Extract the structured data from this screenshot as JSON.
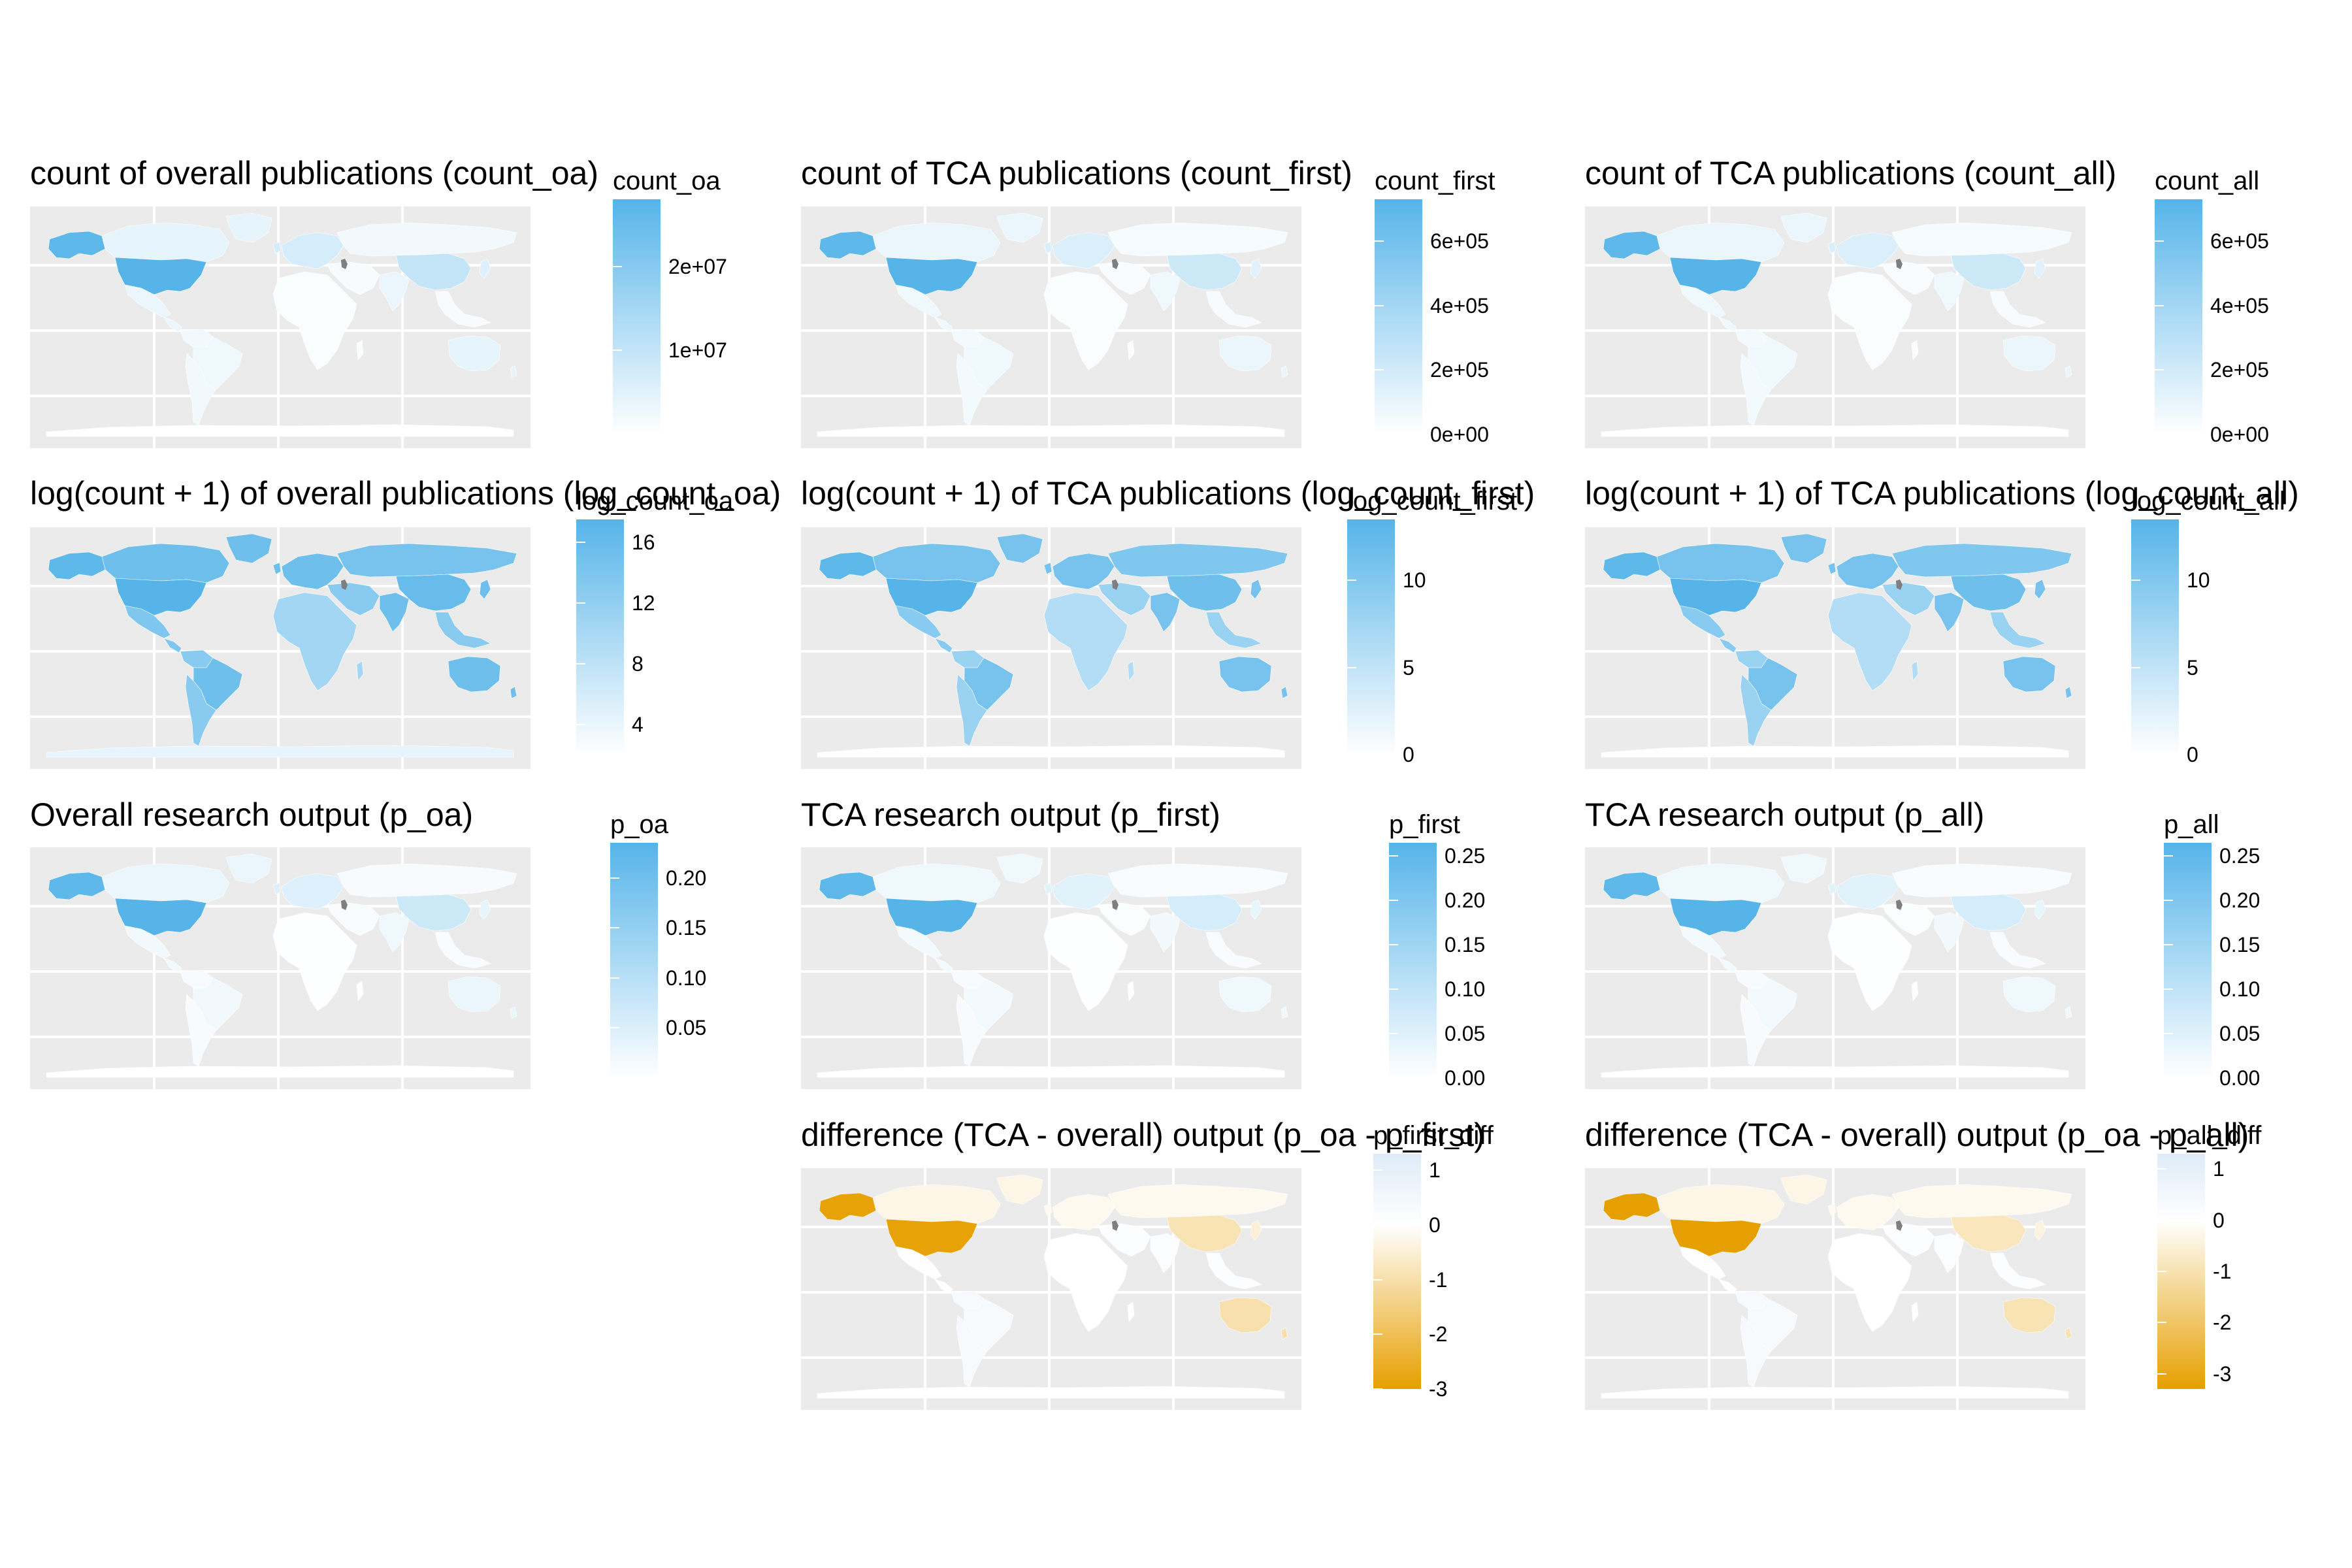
{
  "colors": {
    "panel_bg": "#ebebeb",
    "grid": "#ffffff",
    "blue_high": "#56b4e9",
    "blue_low": "#ffffff",
    "orange_low": "#e69f00",
    "missing": "#7f7f7f"
  },
  "panels": [
    {
      "id": "count_oa",
      "title": "count of overall publications (count_oa)",
      "legend_title": "count_oa",
      "scale": "blue",
      "ticks": [
        "2e+07",
        "1e+07"
      ],
      "tick_values": [
        20000000,
        10000000
      ],
      "range": [
        0,
        28000000
      ],
      "region_levels": {
        "na": 0.95,
        "us": 1.0,
        "ca": 0.15,
        "mx": 0.12,
        "sa": 0.08,
        "br": 0.1,
        "eu": 0.25,
        "ru": 0.08,
        "af": 0.03,
        "me": 0.05,
        "in": 0.12,
        "cn": 0.35,
        "jp": 0.2,
        "sea": 0.05,
        "au": 0.15,
        "ant": 0.0
      }
    },
    {
      "id": "count_first",
      "title": "count of TCA publications (count_first)",
      "legend_title": "count_first",
      "scale": "blue",
      "ticks": [
        "6e+05",
        "4e+05",
        "2e+05",
        "0e+00"
      ],
      "tick_values": [
        600000,
        400000,
        200000,
        0
      ],
      "range": [
        0,
        730000
      ],
      "region_levels": {
        "na": 0.95,
        "us": 1.0,
        "ca": 0.12,
        "mx": 0.1,
        "sa": 0.07,
        "br": 0.1,
        "eu": 0.22,
        "ru": 0.06,
        "af": 0.03,
        "me": 0.04,
        "in": 0.1,
        "cn": 0.3,
        "jp": 0.18,
        "sea": 0.05,
        "au": 0.12,
        "ant": 0.0
      }
    },
    {
      "id": "count_all",
      "title": "count of TCA publications (count_all)",
      "legend_title": "count_all",
      "scale": "blue",
      "ticks": [
        "6e+05",
        "4e+05",
        "2e+05",
        "0e+00"
      ],
      "tick_values": [
        600000,
        400000,
        200000,
        0
      ],
      "range": [
        0,
        730000
      ],
      "region_levels": {
        "na": 0.95,
        "us": 1.0,
        "ca": 0.12,
        "mx": 0.1,
        "sa": 0.07,
        "br": 0.1,
        "eu": 0.22,
        "ru": 0.06,
        "af": 0.03,
        "me": 0.04,
        "in": 0.1,
        "cn": 0.3,
        "jp": 0.18,
        "sea": 0.05,
        "au": 0.12,
        "ant": 0.0
      }
    },
    {
      "id": "log_count_oa",
      "title": "log(count + 1) of overall publications (log_count_oa)",
      "legend_title": "log_count_oa",
      "scale": "blue",
      "ticks": [
        "16",
        "12",
        "8",
        "4"
      ],
      "tick_values": [
        16,
        12,
        8,
        4
      ],
      "range": [
        2,
        17.5
      ],
      "region_levels": {
        "na": 0.95,
        "us": 1.0,
        "ca": 0.85,
        "mx": 0.75,
        "sa": 0.7,
        "br": 0.85,
        "eu": 0.85,
        "ru": 0.8,
        "af": 0.55,
        "me": 0.7,
        "in": 0.85,
        "cn": 0.9,
        "jp": 0.85,
        "sea": 0.7,
        "au": 0.85,
        "ant": 0.15
      }
    },
    {
      "id": "log_count_first",
      "title": "log(count + 1) of TCA publications (log_count_first)",
      "legend_title": "log_count_first",
      "scale": "blue",
      "ticks": [
        "10",
        "5",
        "0"
      ],
      "tick_values": [
        10,
        5,
        0
      ],
      "range": [
        0,
        13.5
      ],
      "region_levels": {
        "na": 0.95,
        "us": 1.0,
        "ca": 0.8,
        "mx": 0.7,
        "sa": 0.6,
        "br": 0.8,
        "eu": 0.8,
        "ru": 0.75,
        "af": 0.45,
        "me": 0.6,
        "in": 0.8,
        "cn": 0.85,
        "jp": 0.8,
        "sea": 0.6,
        "au": 0.8,
        "ant": 0.0
      }
    },
    {
      "id": "log_count_all",
      "title": "log(count + 1) of TCA publications (log_count_all)",
      "legend_title": "log_count_all",
      "scale": "blue",
      "ticks": [
        "10",
        "5",
        "0"
      ],
      "tick_values": [
        10,
        5,
        0
      ],
      "range": [
        0,
        13.5
      ],
      "region_levels": {
        "na": 0.95,
        "us": 1.0,
        "ca": 0.8,
        "mx": 0.7,
        "sa": 0.6,
        "br": 0.8,
        "eu": 0.8,
        "ru": 0.75,
        "af": 0.45,
        "me": 0.6,
        "in": 0.8,
        "cn": 0.85,
        "jp": 0.8,
        "sea": 0.6,
        "au": 0.8,
        "ant": 0.0
      }
    },
    {
      "id": "p_oa",
      "title": "Overall research output (p_oa)",
      "legend_title": "p_oa",
      "scale": "blue",
      "ticks": [
        "0.20",
        "0.15",
        "0.10",
        "0.05"
      ],
      "tick_values": [
        0.2,
        0.15,
        0.1,
        0.05
      ],
      "range": [
        0,
        0.235
      ],
      "region_levels": {
        "na": 0.95,
        "us": 1.0,
        "ca": 0.12,
        "mx": 0.08,
        "sa": 0.05,
        "br": 0.08,
        "eu": 0.2,
        "ru": 0.05,
        "af": 0.02,
        "me": 0.04,
        "in": 0.1,
        "cn": 0.3,
        "jp": 0.15,
        "sea": 0.04,
        "au": 0.12,
        "ant": 0.0
      }
    },
    {
      "id": "p_first",
      "title": "TCA research output (p_first)",
      "legend_title": "p_first",
      "scale": "blue",
      "ticks": [
        "0.25",
        "0.20",
        "0.15",
        "0.10",
        "0.05",
        "0.00"
      ],
      "tick_values": [
        0.25,
        0.2,
        0.15,
        0.1,
        0.05,
        0.0
      ],
      "range": [
        0,
        0.265
      ],
      "region_levels": {
        "na": 0.95,
        "us": 1.0,
        "ca": 0.1,
        "mx": 0.07,
        "sa": 0.05,
        "br": 0.07,
        "eu": 0.18,
        "ru": 0.04,
        "af": 0.02,
        "me": 0.03,
        "in": 0.08,
        "cn": 0.25,
        "jp": 0.14,
        "sea": 0.04,
        "au": 0.1,
        "ant": 0.0
      }
    },
    {
      "id": "p_all",
      "title": "TCA research output (p_all)",
      "legend_title": "p_all",
      "scale": "blue",
      "ticks": [
        "0.25",
        "0.20",
        "0.15",
        "0.10",
        "0.05",
        "0.00"
      ],
      "tick_values": [
        0.25,
        0.2,
        0.15,
        0.1,
        0.05,
        0.0
      ],
      "range": [
        0,
        0.265
      ],
      "region_levels": {
        "na": 0.95,
        "us": 1.0,
        "ca": 0.1,
        "mx": 0.07,
        "sa": 0.05,
        "br": 0.07,
        "eu": 0.18,
        "ru": 0.04,
        "af": 0.02,
        "me": 0.03,
        "in": 0.08,
        "cn": 0.25,
        "jp": 0.14,
        "sea": 0.04,
        "au": 0.1,
        "ant": 0.0
      }
    },
    {
      "id": "p_first_diff",
      "title": "difference (TCA - overall) output (p_oa - p_first)",
      "legend_title": "p_first_diff",
      "scale": "diverging",
      "ticks": [
        "1",
        "0",
        "-1",
        "-2",
        "-3"
      ],
      "tick_values": [
        1,
        0,
        -1,
        -2,
        -3
      ],
      "range": [
        -3,
        1.3
      ],
      "region_values": {
        "na": -3.0,
        "us": -3.0,
        "ca": -0.3,
        "mx": 0.05,
        "sa": 0.3,
        "br": 0.3,
        "eu": -0.2,
        "ru": -0.2,
        "af": 0.0,
        "me": 0.1,
        "in": 0.2,
        "cn": -0.9,
        "jp": -0.5,
        "sea": 0.1,
        "au": -1.0,
        "ant": 0.0
      }
    },
    {
      "id": "p_all_diff",
      "title": "difference (TCA - overall) output (p_oa - p_all)",
      "legend_title": "p_all_diff",
      "scale": "diverging",
      "ticks": [
        "1",
        "0",
        "-1",
        "-2",
        "-3"
      ],
      "tick_values": [
        1,
        0,
        -1,
        -2,
        -3
      ],
      "range": [
        -3.3,
        1.3
      ],
      "region_values": {
        "na": -3.3,
        "us": -3.3,
        "ca": -0.3,
        "mx": 0.05,
        "sa": 0.3,
        "br": 0.3,
        "eu": -0.2,
        "ru": -0.2,
        "af": 0.0,
        "me": 0.1,
        "in": 0.2,
        "cn": -0.8,
        "jp": -0.4,
        "sea": 0.1,
        "au": -0.9,
        "ant": 0.0
      }
    }
  ]
}
